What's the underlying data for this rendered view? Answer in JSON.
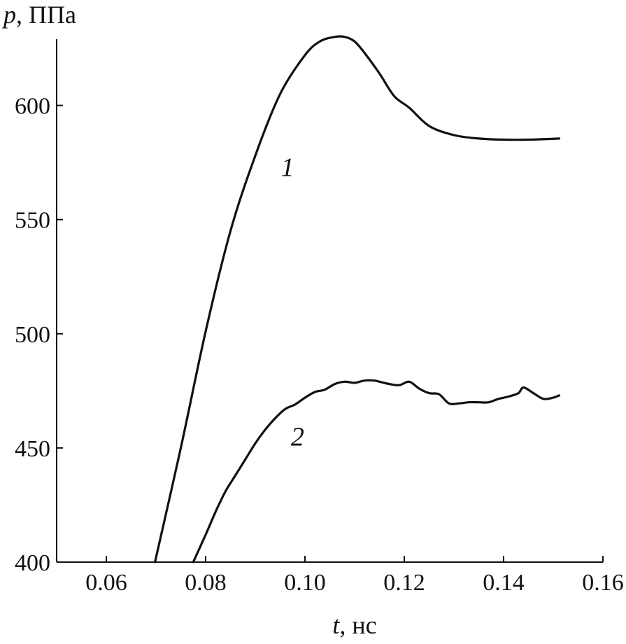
{
  "chart_data": {
    "type": "line",
    "xlabel_var": "t",
    "xlabel_unit": ", нс",
    "ylabel_var": "p",
    "ylabel_unit": ", ППа",
    "xlim": [
      0.05,
      0.16
    ],
    "ylim": [
      400,
      629
    ],
    "x_ticks": [
      0.06,
      0.08,
      0.1,
      0.12,
      0.14,
      0.16
    ],
    "x_tick_labels": [
      "0.06",
      "0.08",
      "0.10",
      "0.12",
      "0.14",
      "0.16"
    ],
    "y_ticks": [
      400,
      450,
      500,
      550,
      600
    ],
    "y_tick_labels": [
      "400",
      "450",
      "500",
      "550",
      "600"
    ],
    "grid": false,
    "line_color": "#111111",
    "series": [
      {
        "name": "1",
        "label_at": [
          0.0965,
          569
        ],
        "x": [
          0.0698,
          0.075,
          0.08,
          0.085,
          0.09,
          0.095,
          0.1,
          0.103,
          0.106,
          0.108,
          0.11,
          0.112,
          0.115,
          0.118,
          0.121,
          0.125,
          0.13,
          0.135,
          0.14,
          0.145,
          0.1512
        ],
        "y": [
          400,
          450,
          501,
          545,
          578,
          605,
          622,
          628,
          630,
          630,
          628,
          623,
          614,
          604,
          599,
          591,
          587,
          585.5,
          585,
          585,
          585.5
        ]
      },
      {
        "name": "2",
        "label_at": [
          0.0985,
          451
        ],
        "x": [
          0.0775,
          0.08,
          0.082,
          0.084,
          0.086,
          0.088,
          0.09,
          0.092,
          0.094,
          0.096,
          0.098,
          0.1,
          0.102,
          0.104,
          0.106,
          0.108,
          0.11,
          0.112,
          0.114,
          0.115,
          0.117,
          0.119,
          0.121,
          0.123,
          0.125,
          0.127,
          0.129,
          0.131,
          0.133,
          0.135,
          0.137,
          0.139,
          0.141,
          0.143,
          0.144,
          0.146,
          0.148,
          0.15,
          0.1512
        ],
        "y": [
          400,
          412,
          422,
          431,
          438,
          445,
          452,
          458,
          463,
          467,
          469,
          472,
          474.5,
          475.5,
          478,
          479,
          478.5,
          479.5,
          479.5,
          479,
          478,
          477.5,
          479,
          476,
          474,
          473.5,
          469.5,
          469.5,
          470,
          470,
          470,
          471.5,
          472.5,
          474,
          476.5,
          474,
          471.5,
          472,
          473
        ]
      }
    ]
  }
}
